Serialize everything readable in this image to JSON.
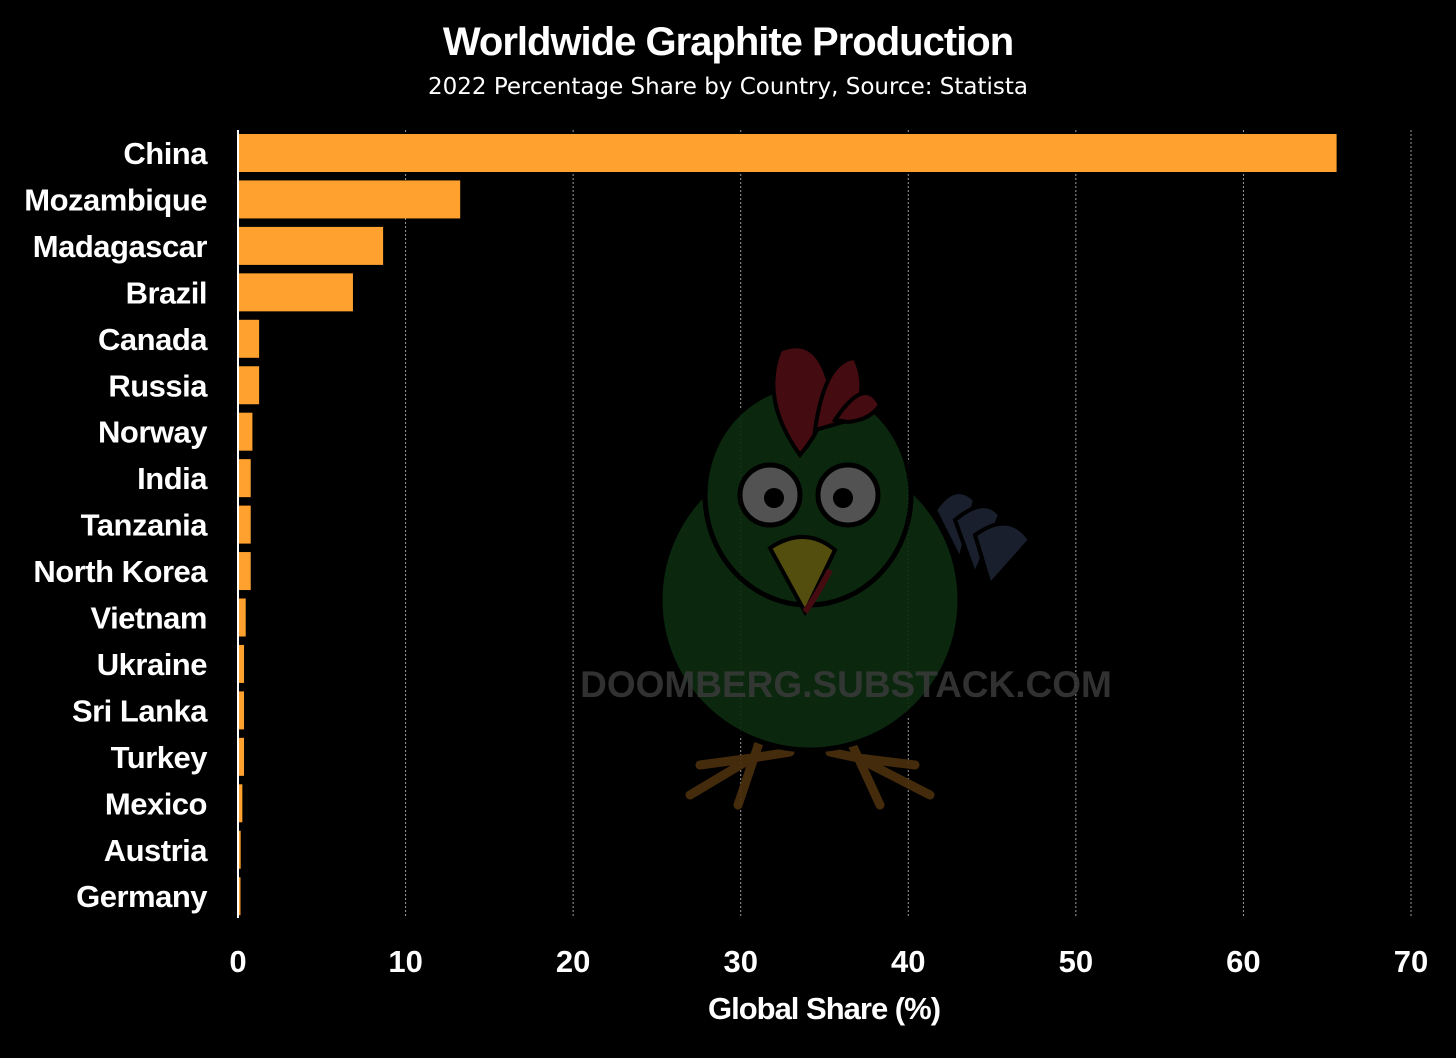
{
  "chart_data": {
    "type": "bar",
    "orientation": "horizontal",
    "title": "Worldwide Graphite Production",
    "subtitle": "2022 Percentage Share by Country, Source: Statista",
    "xlabel": "Global Share (%)",
    "ylabel": "",
    "xlim": [
      0,
      70
    ],
    "xticks": [
      0,
      10,
      20,
      30,
      40,
      50,
      60,
      70
    ],
    "grid": "vertical",
    "categories": [
      "China",
      "Mozambique",
      "Madagascar",
      "Brazil",
      "Canada",
      "Russia",
      "Norway",
      "India",
      "Tanzania",
      "North Korea",
      "Vietnam",
      "Ukraine",
      "Sri Lanka",
      "Turkey",
      "Mexico",
      "Austria",
      "Germany"
    ],
    "values": [
      65.5,
      13.2,
      8.6,
      6.8,
      1.2,
      1.2,
      0.8,
      0.7,
      0.7,
      0.7,
      0.4,
      0.3,
      0.3,
      0.3,
      0.2,
      0.1,
      0.05
    ],
    "colors": {
      "bar": "#ffa12e",
      "background": "#000000",
      "text": "#ffffff",
      "grid": "#9a9a9a"
    }
  },
  "watermark": {
    "text": "DOOMBERG.SUBSTACK.COM"
  }
}
